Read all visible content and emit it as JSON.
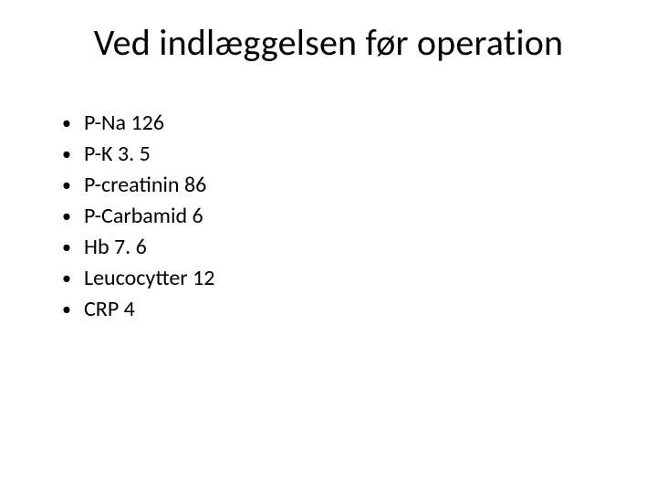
{
  "slide": {
    "title": "Ved indlæggelsen før operation",
    "title_fontsize": 40,
    "bullet_fontsize": 24,
    "background_color": "#ffffff",
    "text_color": "#000000",
    "bullets": [
      "P-Na 126",
      "P-K 3. 5",
      "P-creatinin 86",
      "P-Carbamid 6",
      "Hb 7. 6",
      "Leucocytter 12",
      "CRP 4"
    ]
  }
}
